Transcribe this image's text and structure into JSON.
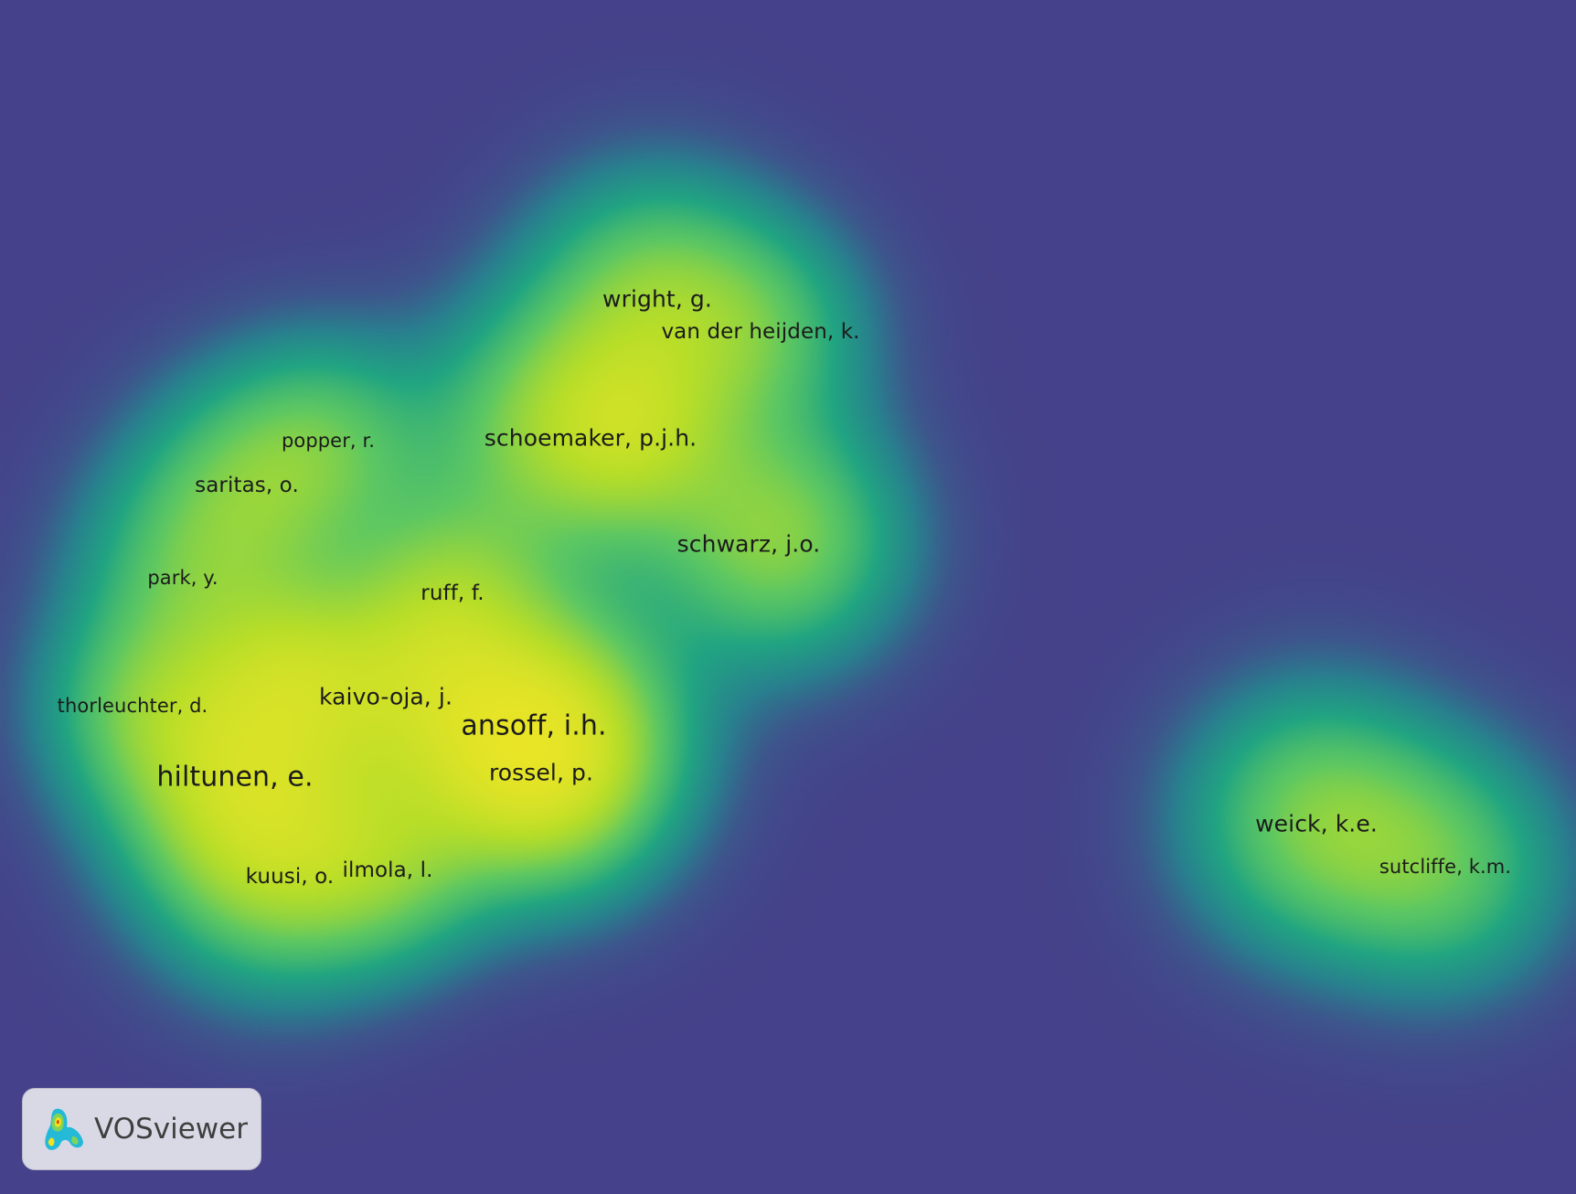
{
  "app": {
    "logo_text": "VOSviewer",
    "logo_icon": "vosviewer-logo-icon"
  },
  "colors": {
    "background": "#45418a",
    "low": "#1f9a8a",
    "mid": "#5cc763",
    "high": "#fde725",
    "label": "#1b1b1b"
  },
  "items": [
    {
      "label": "wright, g."
    },
    {
      "label": "van der heijden, k."
    },
    {
      "label": "schoemaker, p.j.h."
    },
    {
      "label": "popper, r."
    },
    {
      "label": "saritas, o."
    },
    {
      "label": "schwarz, j.o."
    },
    {
      "label": "park, y."
    },
    {
      "label": "ruff, f."
    },
    {
      "label": "kaivo-oja, j."
    },
    {
      "label": "thorleuchter, d."
    },
    {
      "label": "ansoff, i.h."
    },
    {
      "label": "rossel, p."
    },
    {
      "label": "hiltunen, e."
    },
    {
      "label": "kuusi, o."
    },
    {
      "label": "ilmola, l."
    },
    {
      "label": "weick, k.e."
    },
    {
      "label": "sutcliffe, k.m."
    }
  ]
}
